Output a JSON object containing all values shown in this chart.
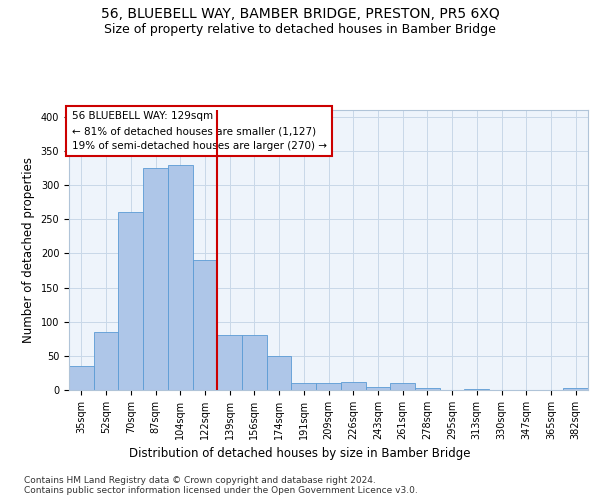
{
  "title": "56, BLUEBELL WAY, BAMBER BRIDGE, PRESTON, PR5 6XQ",
  "subtitle": "Size of property relative to detached houses in Bamber Bridge",
  "xlabel": "Distribution of detached houses by size in Bamber Bridge",
  "ylabel": "Number of detached properties",
  "categories": [
    "35sqm",
    "52sqm",
    "70sqm",
    "87sqm",
    "104sqm",
    "122sqm",
    "139sqm",
    "156sqm",
    "174sqm",
    "191sqm",
    "209sqm",
    "226sqm",
    "243sqm",
    "261sqm",
    "278sqm",
    "295sqm",
    "313sqm",
    "330sqm",
    "347sqm",
    "365sqm",
    "382sqm"
  ],
  "bar_heights": [
    35,
    85,
    260,
    325,
    330,
    190,
    80,
    80,
    50,
    10,
    10,
    12,
    5,
    10,
    3,
    0,
    2,
    0,
    0,
    0,
    3
  ],
  "bar_color": "#AEC6E8",
  "bar_edge_color": "#5B9BD5",
  "vline_color": "#CC0000",
  "annotation_text": "56 BLUEBELL WAY: 129sqm\n← 81% of detached houses are smaller (1,127)\n19% of semi-detached houses are larger (270) →",
  "annotation_box_color": "#CC0000",
  "ylim": [
    0,
    410
  ],
  "yticks": [
    0,
    50,
    100,
    150,
    200,
    250,
    300,
    350,
    400
  ],
  "footer_text": "Contains HM Land Registry data © Crown copyright and database right 2024.\nContains public sector information licensed under the Open Government Licence v3.0.",
  "bg_color": "#FFFFFF",
  "grid_color": "#C8D8E8",
  "title_fontsize": 10,
  "subtitle_fontsize": 9,
  "axis_label_fontsize": 8.5,
  "tick_fontsize": 7,
  "footer_fontsize": 6.5,
  "annotation_fontsize": 7.5
}
